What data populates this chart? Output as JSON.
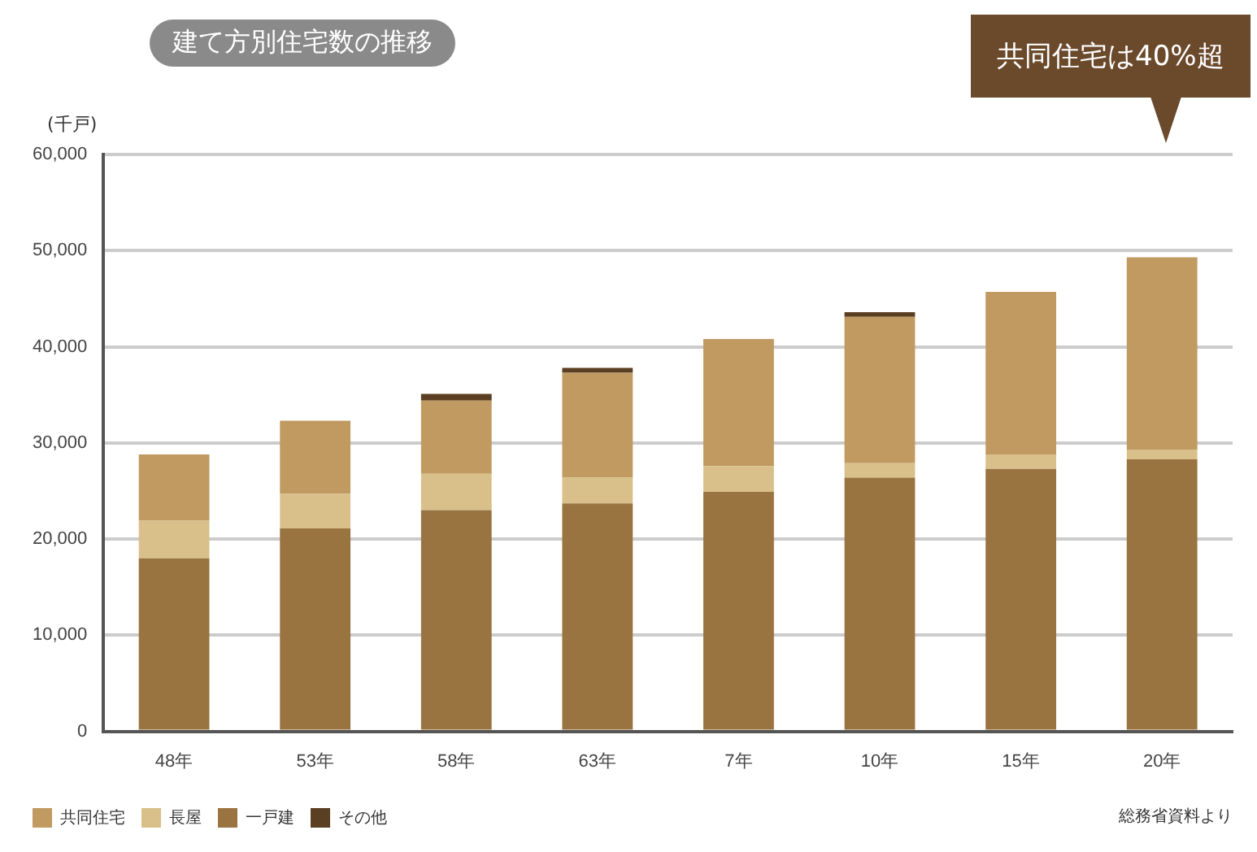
{
  "chart_data": {
    "type": "bar",
    "stacked": true,
    "title": "建て方別住宅数の推移",
    "ylabel": "(千戸)",
    "categories": [
      "48年",
      "53年",
      "58年",
      "63年",
      "7年",
      "10年",
      "15年",
      "20年"
    ],
    "series": [
      {
        "name": "一戸建",
        "color": "#9a7440",
        "values": [
          18000,
          21100,
          23000,
          23700,
          24900,
          26400,
          27300,
          28300
        ]
      },
      {
        "name": "長屋",
        "color": "#d9c08a",
        "values": [
          3900,
          3600,
          3800,
          2700,
          2700,
          1500,
          1500,
          1000
        ]
      },
      {
        "name": "共同住宅",
        "color": "#c09a60",
        "values": [
          6900,
          7600,
          7600,
          10900,
          13200,
          15200,
          16900,
          20000
        ]
      },
      {
        "name": "その他",
        "color": "#5a3f22",
        "values": [
          null,
          null,
          700,
          500,
          null,
          500,
          null,
          null
        ]
      }
    ],
    "ylim": [
      0,
      60000
    ],
    "yticks": [
      0,
      {
        "value": 10000,
        "label": "10,000"
      },
      {
        "value": 20000,
        "label": "20,000"
      },
      {
        "value": 30000,
        "label": "30,000"
      },
      {
        "value": 40000,
        "label": "40,000"
      },
      {
        "value": 50000,
        "label": "50,000"
      },
      {
        "value": 60000,
        "label": "60,000"
      }
    ],
    "grid": "y",
    "legend": "bottom left",
    "annotations": [
      "共同住宅は40%超",
      "総務省資料より"
    ]
  }
}
